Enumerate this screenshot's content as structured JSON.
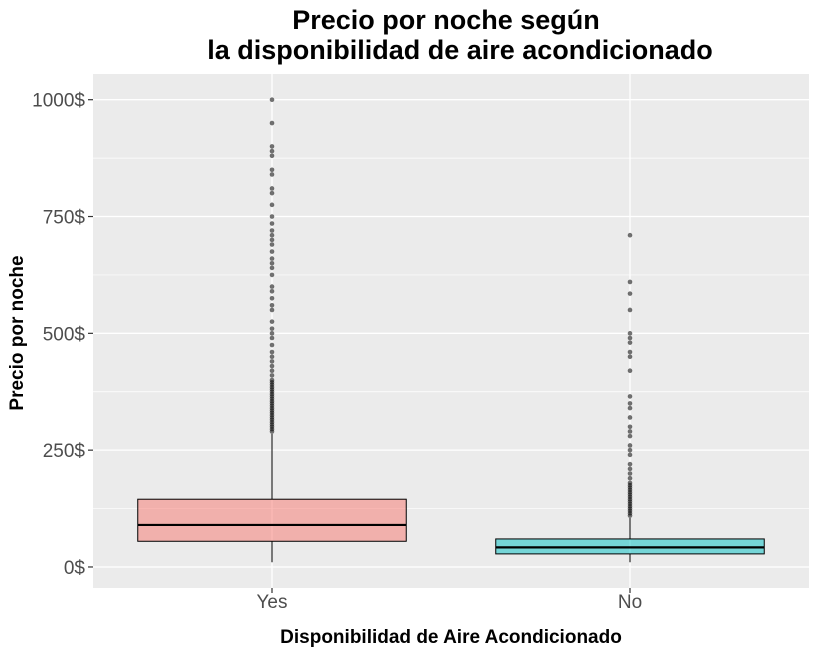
{
  "chart_data": {
    "type": "boxplot",
    "title_lines": [
      "Precio por noche según",
      "la disponibilidad de aire acondicionado"
    ],
    "xlabel": "Disponibilidad de Aire Acondicionado",
    "ylabel": "Precio por noche",
    "categories": [
      "Yes",
      "No"
    ],
    "ylim": [
      -45,
      1055
    ],
    "yticks": [
      0,
      250,
      500,
      750,
      1000
    ],
    "ytick_labels": [
      "0$",
      "250$",
      "500$",
      "750$",
      "1000$"
    ],
    "grid": true,
    "legend": "none",
    "boxes": [
      {
        "category": "Yes",
        "color": "#F8766D",
        "whisker_low": 10,
        "q1": 55,
        "median": 90,
        "q3": 145,
        "whisker_high": 285,
        "outliers": [
          290,
          295,
          300,
          305,
          310,
          315,
          320,
          325,
          330,
          335,
          340,
          345,
          350,
          355,
          360,
          365,
          370,
          375,
          380,
          385,
          390,
          395,
          400,
          410,
          420,
          430,
          440,
          450,
          460,
          475,
          490,
          500,
          510,
          525,
          550,
          560,
          575,
          590,
          600,
          625,
          640,
          650,
          660,
          675,
          690,
          700,
          710,
          720,
          735,
          750,
          775,
          800,
          810,
          840,
          850,
          880,
          890,
          900,
          950,
          1000
        ]
      },
      {
        "category": "No",
        "color": "#00BFC4",
        "whisker_low": 10,
        "q1": 28,
        "median": 42,
        "q3": 60,
        "whisker_high": 105,
        "outliers": [
          110,
          115,
          120,
          125,
          130,
          135,
          140,
          145,
          150,
          155,
          160,
          165,
          170,
          175,
          180,
          190,
          200,
          210,
          220,
          240,
          250,
          260,
          280,
          290,
          300,
          320,
          340,
          350,
          365,
          420,
          450,
          460,
          480,
          490,
          500,
          550,
          585,
          610,
          710
        ]
      }
    ]
  }
}
